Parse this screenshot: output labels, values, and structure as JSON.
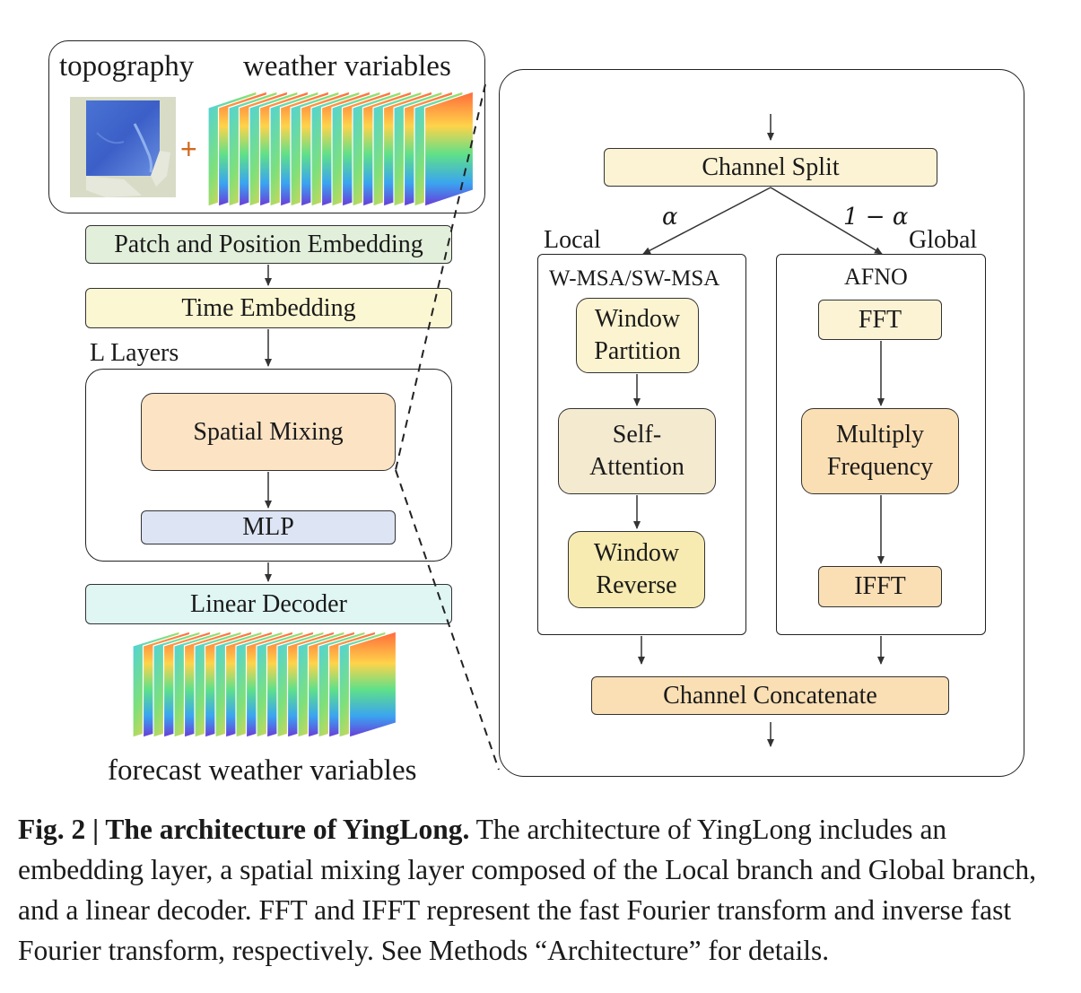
{
  "input": {
    "topography_label": "topography",
    "weather_label": "weather variables",
    "plus": "+"
  },
  "left": {
    "patch_embedding": "Patch and Position Embedding",
    "time_embedding": "Time Embedding",
    "layers_label": "L Layers",
    "spatial_mixing": "Spatial Mixing",
    "mlp": "MLP",
    "linear_decoder": "Linear Decoder",
    "output_label": "forecast weather variables"
  },
  "right": {
    "channel_split": "Channel Split",
    "alpha": "α",
    "one_minus_alpha": "1 − α",
    "local_label": "Local",
    "global_label": "Global",
    "local_block_title": "W-MSA/SW-MSA",
    "window_partition_1": "Window",
    "window_partition_2": "Partition",
    "self_attention_1": "Self-",
    "self_attention_2": "Attention",
    "window_reverse_1": "Window",
    "window_reverse_2": "Reverse",
    "global_block_title": "AFNO",
    "fft": "FFT",
    "multiply_frequency_1": "Multiply",
    "multiply_frequency_2": "Frequency",
    "ifft": "IFFT",
    "channel_concatenate": "Channel Concatenate"
  },
  "caption": {
    "fig_label": "Fig. 2 | The architecture of YingLong.",
    "text": "The architecture of YingLong includes an embedding layer, a spatial mixing layer composed of the Local branch and Global branch, and a linear decoder. FFT and IFFT represent the fast Fourier transform and inverse fast Fourier transform, respectively. See Methods “Architecture” for details."
  },
  "colors": {
    "patch_embedding": "#e2efda",
    "time_embedding": "#fbf7d2",
    "spatial_mixing": "#fbe3c4",
    "mlp": "#dde4f4",
    "linear_decoder": "#dff6f3",
    "channel_split": "#fbf3d3",
    "channel_concatenate": "#fbdfb4"
  }
}
